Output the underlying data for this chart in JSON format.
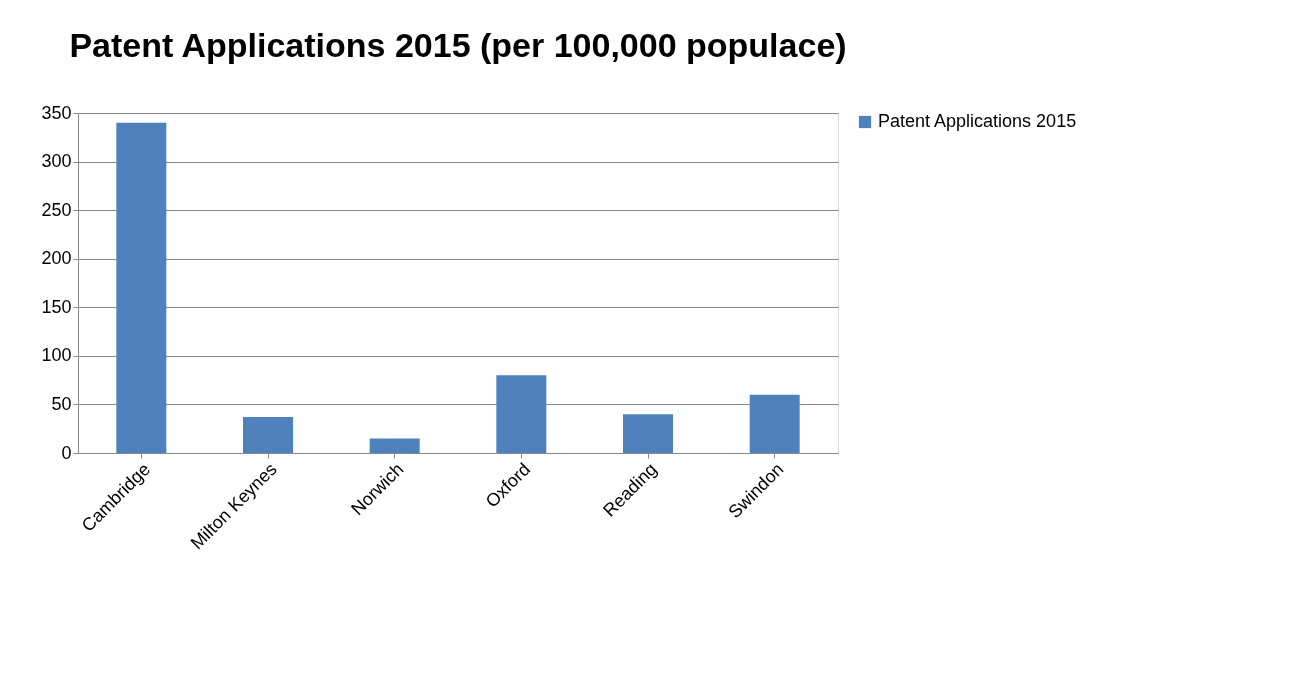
{
  "chart_data": {
    "type": "bar",
    "title": "Patent Applications 2015 (per 100,000 populace)",
    "categories": [
      "Cambridge",
      "Milton Keynes",
      "Norwich",
      "Oxford",
      "Reading",
      "Swindon"
    ],
    "series": [
      {
        "name": "Patent Applications 2015",
        "color": "#4f81bd",
        "values": [
          340,
          37,
          15,
          80,
          40,
          60
        ]
      }
    ],
    "ylim": [
      0,
      350
    ],
    "yticks": [
      0,
      50,
      100,
      150,
      200,
      250,
      300,
      350
    ],
    "grid": "y",
    "legend": "right"
  }
}
